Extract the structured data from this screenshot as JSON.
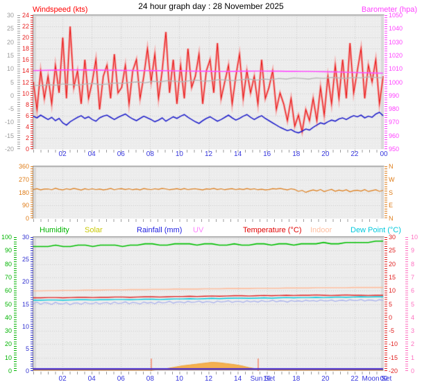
{
  "page": {
    "title": "24 hour graph day : 28 November 2025"
  },
  "chart_data": [
    {
      "id": "wind-and-barometer",
      "type": "line",
      "title_left": {
        "text": "Windspeed (kts)",
        "color": "#ff0000"
      },
      "title_right": {
        "text": "Barometer (hpa)",
        "color": "#ff40ff"
      },
      "x_tick_labels": [
        "02",
        "04",
        "06",
        "08",
        "10",
        "12",
        "14",
        "16",
        "18",
        "20",
        "22",
        "00"
      ],
      "x_tick_color": "#3434dd",
      "axes": {
        "gray": {
          "min": -20,
          "max": 30,
          "step": 5,
          "color": "#9c9c9c",
          "labels": [
            "30",
            "25",
            "20",
            "15",
            "10",
            "5",
            "0",
            "-5",
            "-10",
            "-15",
            "-20"
          ]
        },
        "kts": {
          "min": 0,
          "max": 24,
          "step": 2,
          "color": "#e82020",
          "labels": [
            "24",
            "22",
            "20",
            "18",
            "16",
            "14",
            "12",
            "10",
            "8",
            "6",
            "4",
            "2",
            "0"
          ]
        },
        "hpa": {
          "min": 950,
          "max": 1050,
          "step": 10,
          "color": "#ff40ff",
          "labels": [
            "1050",
            "1040",
            "1030",
            "1020",
            "1010",
            "1000",
            "990",
            "980",
            "970",
            "960",
            "950"
          ]
        }
      },
      "series": [
        {
          "name": "wind-gust",
          "axis": "kts",
          "color": "#e81414",
          "halo": "#f6a4a4",
          "width": 1.1,
          "values": [
            12,
            7,
            14,
            9,
            13,
            8,
            15,
            10,
            20,
            9,
            22,
            11,
            14,
            8,
            16,
            9,
            12,
            16,
            7,
            13,
            15,
            9,
            17,
            10,
            11,
            15,
            8,
            14,
            16,
            9,
            13,
            18,
            12,
            17,
            9,
            14,
            21,
            10,
            16,
            8,
            15,
            9,
            18,
            11,
            13,
            17,
            8,
            14,
            16,
            10,
            19,
            9,
            12,
            15,
            8,
            13,
            17,
            9,
            14,
            10,
            13,
            8,
            16,
            9,
            11,
            14,
            7,
            10,
            8,
            5,
            9,
            4,
            6,
            3,
            7,
            5,
            9,
            5,
            11,
            6,
            13,
            8,
            15,
            9,
            16,
            9,
            19,
            10,
            14,
            18,
            9,
            15,
            12,
            16,
            8,
            13
          ]
        },
        {
          "name": "gray-trend-line",
          "axis": "kts",
          "color": "#b6b6b6",
          "width": 1.3,
          "values": [
            11.4,
            11.3,
            11.5,
            11.4,
            11.6,
            11.5,
            11.4,
            11.6,
            11.7,
            11.5,
            11.6,
            11.8,
            11.7,
            11.9,
            12.0,
            11.8,
            12.1,
            12.0,
            12.2,
            12.1,
            12.0,
            12.2,
            12.3,
            12.1,
            12.2,
            12.4,
            12.3,
            12.2,
            12.4,
            12.5,
            12.3,
            12.5,
            12.4,
            12.6,
            12.5,
            12.7,
            12.6,
            12.5,
            12.7,
            12.6,
            12.8,
            12.7,
            12.6,
            12.8,
            12.7,
            12.9,
            12.8,
            12.7
          ]
        },
        {
          "name": "wind-average",
          "axis": "kts",
          "color": "#2222cc",
          "width": 1.6,
          "values": [
            5.8,
            5.5,
            6.0,
            5.6,
            5.2,
            5.6,
            5.0,
            5.4,
            4.6,
            4.2,
            4.8,
            5.2,
            5.6,
            5.9,
            5.4,
            5.7,
            5.2,
            4.9,
            5.5,
            5.8,
            6.0,
            5.6,
            5.2,
            5.6,
            5.9,
            6.2,
            5.7,
            5.3,
            5.0,
            5.4,
            5.8,
            5.5,
            5.2,
            4.8,
            5.1,
            5.5,
            4.9,
            5.3,
            5.7,
            5.4,
            5.8,
            6.1,
            5.6,
            5.2,
            4.8,
            4.5,
            5.0,
            5.4,
            5.7,
            5.3,
            4.9,
            5.2,
            5.6,
            6.0,
            5.5,
            5.1,
            5.4,
            5.8,
            6.1,
            5.6,
            5.2,
            5.6,
            5.9,
            5.4,
            5.0,
            4.6,
            4.2,
            3.8,
            3.5,
            3.2,
            3.4,
            3.0,
            2.8,
            3.1,
            3.5,
            3.3,
            3.8,
            4.2,
            4.6,
            4.4,
            4.8,
            5.1,
            4.9,
            5.3,
            5.5,
            5.2,
            5.6,
            5.9,
            5.7,
            6.0,
            5.5,
            5.8,
            5.6,
            6.2,
            6.5,
            5.9
          ]
        },
        {
          "name": "barometer",
          "axis": "hpa",
          "color": "#ff50ff",
          "width": 1.6,
          "values": [
            1008.5,
            1008.6,
            1008.7,
            1008.8,
            1008.9,
            1009.0,
            1009.0,
            1008.9,
            1008.8,
            1008.8,
            1008.7,
            1008.7,
            1008.6,
            1008.6,
            1008.5,
            1008.5,
            1008.4,
            1008.4,
            1008.3,
            1008.2,
            1008.2,
            1008.1,
            1008.0,
            1008.0,
            1007.9,
            1007.8,
            1007.8,
            1007.9,
            1008.0,
            1008.0,
            1008.1,
            1008.1,
            1008.0,
            1008.0,
            1007.9,
            1007.9,
            1007.8,
            1007.8,
            1007.7,
            1007.6,
            1007.5,
            1007.4,
            1007.2,
            1007.0,
            1006.9,
            1006.8,
            1006.6,
            1006.5
          ]
        }
      ]
    },
    {
      "id": "wind-direction",
      "type": "line",
      "axes": {
        "deg": {
          "min": 0,
          "max": 360,
          "step": 90,
          "color": "#de7a14",
          "labels": [
            "360",
            "270",
            "180",
            "90",
            "0"
          ]
        }
      },
      "compass_labels": [
        "N",
        "W",
        "S",
        "E",
        "N"
      ],
      "compass_color": "#de7a14",
      "series": [
        {
          "name": "wind-direction",
          "axis": "deg",
          "color": "#de7a14",
          "width": 1.2,
          "values": [
            198,
            204,
            195,
            201,
            202,
            196,
            207,
            199,
            195,
            203,
            198,
            206,
            200,
            194,
            204,
            197,
            203,
            197,
            201,
            195,
            199,
            206,
            196,
            202,
            204,
            198,
            203,
            196,
            201,
            195,
            205,
            200,
            197,
            203,
            199,
            206,
            202,
            196,
            200,
            204,
            198,
            205,
            197,
            201,
            203,
            199,
            195,
            202,
            200,
            206,
            198,
            203,
            196,
            201,
            204,
            197,
            202,
            198,
            205,
            199,
            203,
            196,
            200,
            195,
            198,
            204,
            201,
            206,
            200,
            195,
            203,
            198,
            185,
            192,
            178,
            188,
            195,
            188,
            198,
            183,
            192,
            199,
            186,
            194,
            188,
            196,
            182,
            190,
            193,
            187,
            197,
            184,
            190,
            196,
            185,
            192
          ]
        }
      ]
    },
    {
      "id": "climate",
      "type": "line",
      "legend": [
        {
          "label": "Humidity",
          "color": "#00b400"
        },
        {
          "label": "Solar",
          "color": "#c8c800"
        },
        {
          "label": "Rainfall (mm)",
          "color": "#2020e0"
        },
        {
          "label": "UV",
          "color": "#ff80ff"
        },
        {
          "label": "Temperature (°C)",
          "color": "#e00000"
        },
        {
          "label": "Indoor",
          "color": "#ffbfa0"
        },
        {
          "label": "Dew Point (°C)",
          "color": "#00c8dc"
        }
      ],
      "x_tick_labels": [
        "02",
        "04",
        "06",
        "08",
        "10",
        "12",
        "14",
        "16",
        "18",
        "20",
        "22",
        "00"
      ],
      "x_tick_color": "#3434dd",
      "x_event_labels": [
        {
          "label": "Sun Set",
          "hour": 15.9
        },
        {
          "label": "Moon Set",
          "hour": 23.55
        }
      ],
      "event_lines": [
        {
          "hour": 8.05
        },
        {
          "hour": 15.35
        }
      ],
      "event_color": "#f2a08a",
      "axes": {
        "rh": {
          "min": 0,
          "max": 100,
          "step": 10,
          "color": "#00b400",
          "labels": [
            "100",
            "90",
            "80",
            "70",
            "60",
            "50",
            "40",
            "30",
            "20",
            "10",
            "0"
          ]
        },
        "rain": {
          "min": 0,
          "max": 30,
          "step": 5,
          "color": "#3030d0",
          "labels": [
            "30",
            "25",
            "20",
            "15",
            "10",
            "5",
            "0"
          ]
        },
        "temp": {
          "min": -20,
          "max": 30,
          "step": 5,
          "color": "#e02020",
          "labels": [
            "30",
            "25",
            "20",
            "15",
            "10",
            "5",
            "0",
            "-5",
            "-10",
            "-15",
            "-20"
          ]
        },
        "uv": {
          "min": 0,
          "max": 10,
          "step": 1,
          "color": "#ff70c0",
          "labels": [
            "10",
            "9",
            "8",
            "7",
            "6",
            "5",
            "4",
            "3",
            "2",
            "1",
            "0"
          ]
        }
      },
      "series": [
        {
          "name": "humidity",
          "axis": "rh",
          "color": "#00c000",
          "width": 1.6,
          "values": [
            93,
            93,
            93,
            94,
            93,
            93,
            94,
            94,
            93,
            94,
            94,
            94,
            93,
            94,
            94,
            95,
            95,
            94,
            94,
            95,
            95,
            95,
            94,
            95,
            95,
            94,
            94,
            95,
            94,
            94,
            95,
            95,
            94,
            95,
            95,
            94,
            95,
            95,
            95,
            96,
            95,
            95,
            96,
            96,
            96,
            96,
            97,
            97
          ]
        },
        {
          "name": "solar",
          "axis": "rain",
          "color": "#eea43c",
          "fill": "#f5b050",
          "width": 1.0,
          "values": [
            0,
            0,
            0,
            0,
            0,
            0,
            0,
            0,
            0,
            0,
            0,
            0,
            0,
            0,
            0,
            0,
            0,
            0.2,
            0.4,
            0.7,
            1.0,
            1.2,
            1.4,
            1.6,
            1.8,
            1.7,
            1.5,
            1.3,
            1.0,
            0.6,
            0.3,
            0.1,
            0,
            0,
            0,
            0,
            0,
            0,
            0,
            0,
            0,
            0,
            0,
            0,
            0,
            0,
            0,
            0
          ]
        },
        {
          "name": "solar-baseline",
          "axis": "rain",
          "color": "#c8a800",
          "width": 1.0,
          "dy": -0.5,
          "values": [
            0,
            0
          ]
        },
        {
          "name": "rainfall",
          "axis": "rain",
          "color": "#2020e0",
          "width": 1.0,
          "dy": -2.5,
          "values": [
            0,
            0
          ]
        },
        {
          "name": "uv",
          "axis": "uv",
          "color": "#5a30c8",
          "width": 2.0,
          "dy": -1.5,
          "values": [
            0,
            0
          ]
        },
        {
          "name": "lavender-jagged-line",
          "axis": "temp",
          "color": "#aab2ee",
          "width": 1.3,
          "values": [
            5.0,
            5.6,
            4.8,
            5.4,
            5.2,
            4.7,
            5.5,
            5.0,
            4.9,
            5.4,
            4.6,
            5.2,
            5.3,
            4.8,
            5.5,
            5.1,
            5.0,
            5.5,
            4.9,
            5.3,
            5.4,
            4.9,
            5.6,
            5.1,
            5.2,
            5.7,
            5.0,
            5.5,
            5.3,
            4.9,
            5.6,
            5.2,
            5.5,
            5.0,
            5.7,
            5.3,
            5.4,
            5.9,
            5.2,
            5.6,
            5.7,
            5.3,
            5.9,
            5.5,
            5.6,
            6.0,
            5.4,
            5.8,
            5.7,
            5.3,
            6.0,
            5.6,
            5.8,
            6.1,
            5.5,
            5.9,
            5.9,
            5.5,
            6.1,
            5.7,
            6.0,
            5.6,
            6.2,
            5.8,
            5.9,
            6.3,
            5.7,
            6.1,
            6.0,
            5.6,
            6.2,
            5.9,
            6.1,
            5.8,
            6.3,
            6.0,
            6.2,
            5.9,
            6.4,
            6.1,
            6.1,
            6.4,
            5.9,
            6.2,
            6.3,
            6.0,
            6.5,
            6.2,
            6.2,
            6.6,
            6.0,
            6.4,
            6.3,
            6.0,
            6.5,
            6.2
          ]
        },
        {
          "name": "indoor",
          "axis": "temp",
          "color": "#ffbfa0",
          "width": 1.6,
          "values": [
            9.8,
            9.8,
            9.9,
            9.9,
            10.0,
            10.0,
            10.0,
            10.1,
            10.1,
            10.1,
            10.2,
            10.2,
            10.2,
            10.3,
            10.3,
            10.3,
            10.4,
            10.4,
            10.4,
            10.5,
            10.5,
            10.5,
            10.5,
            10.6,
            10.6,
            10.6,
            10.7,
            10.7,
            10.7,
            10.7,
            10.8,
            10.8,
            10.8,
            10.8,
            10.9,
            10.9,
            10.9,
            10.9,
            11.0,
            11.0,
            11.0,
            11.0,
            11.0,
            11.1,
            11.1,
            11.1,
            11.1,
            11.1
          ]
        },
        {
          "name": "dew-point",
          "axis": "temp",
          "color": "#00c8dc",
          "width": 1.4,
          "values": [
            6.3,
            6.3,
            6.4,
            6.4,
            6.3,
            6.4,
            6.5,
            6.5,
            6.4,
            6.5,
            6.5,
            6.6,
            6.6,
            6.5,
            6.6,
            6.7,
            6.7,
            6.6,
            6.7,
            6.8,
            6.8,
            6.9,
            6.8,
            6.9,
            7.0,
            6.9,
            7.0,
            7.1,
            7.1,
            7.0,
            7.1,
            7.2,
            7.1,
            7.2,
            7.3,
            7.2,
            7.3,
            7.3,
            7.4,
            7.3,
            7.4,
            7.5,
            7.4,
            7.5,
            7.6,
            7.5,
            7.6,
            7.6
          ]
        },
        {
          "name": "temperature",
          "axis": "temp",
          "color": "#e02020",
          "width": 1.4,
          "values": [
            7.2,
            7.2,
            7.3,
            7.3,
            7.2,
            7.3,
            7.4,
            7.4,
            7.3,
            7.4,
            7.4,
            7.5,
            7.5,
            7.4,
            7.5,
            7.6,
            7.6,
            7.5,
            7.6,
            7.7,
            7.7,
            7.8,
            7.7,
            7.8,
            7.9,
            7.8,
            7.9,
            8.0,
            8.0,
            7.9,
            8.0,
            8.1,
            8.0,
            8.1,
            8.2,
            8.1,
            8.2,
            8.2,
            8.3,
            8.2,
            8.1,
            8.2,
            8.3,
            8.2,
            8.2,
            8.1,
            8.2,
            8.2
          ]
        }
      ]
    }
  ]
}
